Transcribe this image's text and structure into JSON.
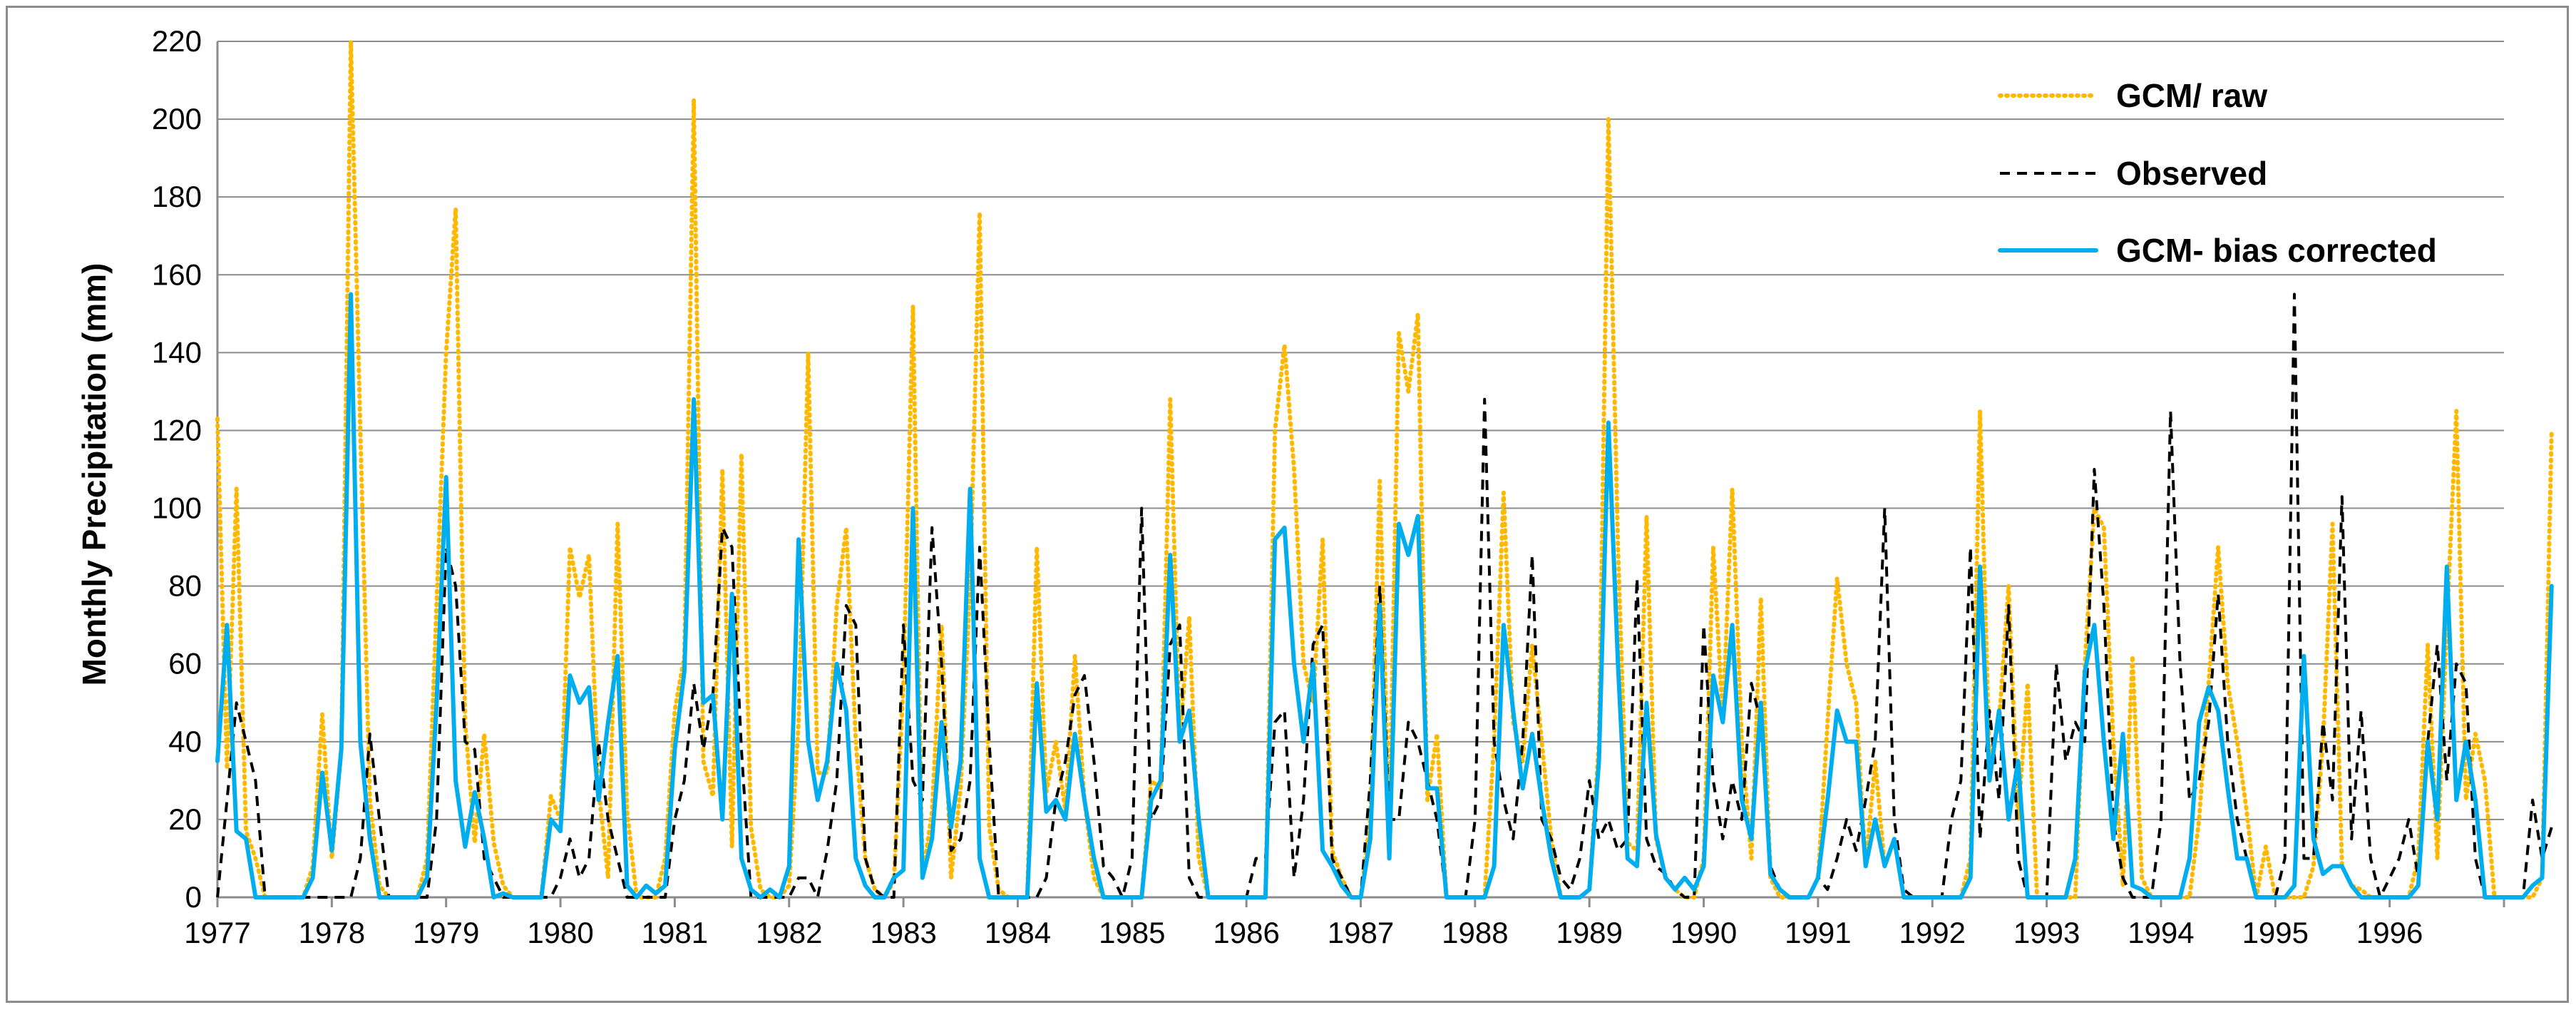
{
  "chart_data": {
    "type": "line",
    "title": "",
    "xlabel": "",
    "ylabel": "Monthly Precipitation (mm)",
    "ylim": [
      0,
      220
    ],
    "yticks": [
      "0",
      "20",
      "40",
      "60",
      "80",
      "100",
      "120",
      "140",
      "160",
      "180",
      "200",
      "220"
    ],
    "xticks": [
      "1977",
      "1978",
      "1979",
      "1980",
      "1981",
      "1982",
      "1983",
      "1984",
      "1985",
      "1986",
      "1987",
      "1988",
      "1989",
      "1990",
      "1991",
      "1992",
      "1993",
      "1994",
      "1995",
      "1996"
    ],
    "x_start": "1977-01",
    "x_frequency": "monthly",
    "grid": "horizontal",
    "legend_position": "top-right",
    "series": [
      {
        "name": "GCM/ raw",
        "color": "#FFB800",
        "style": "dotted",
        "values": [
          123,
          33,
          105,
          17,
          10,
          0,
          0,
          0,
          0,
          0,
          8,
          47,
          10,
          38,
          220,
          120,
          25,
          3,
          0,
          0,
          0,
          0,
          10,
          75,
          140,
          177,
          45,
          14,
          42,
          14,
          3,
          0,
          0,
          0,
          0,
          26,
          20,
          90,
          77,
          88,
          28,
          5,
          96,
          22,
          0,
          0,
          0,
          10,
          48,
          62,
          205,
          35,
          26,
          110,
          13,
          114,
          18,
          2,
          0,
          0,
          3,
          45,
          140,
          32,
          32,
          75,
          95,
          40,
          10,
          2,
          0,
          4,
          55,
          152,
          5,
          22,
          70,
          5,
          28,
          80,
          176,
          18,
          2,
          0,
          0,
          0,
          90,
          27,
          40,
          22,
          62,
          25,
          5,
          0,
          0,
          0,
          0,
          0,
          30,
          28,
          128,
          40,
          72,
          10,
          0,
          0,
          0,
          0,
          0,
          0,
          0,
          120,
          142,
          110,
          60,
          50,
          92,
          12,
          5,
          0,
          0,
          20,
          107,
          18,
          145,
          130,
          150,
          25,
          42,
          0,
          0,
          0,
          0,
          0,
          40,
          104,
          45,
          35,
          65,
          40,
          15,
          0,
          0,
          0,
          2,
          40,
          200,
          90,
          14,
          12,
          98,
          15,
          5,
          2,
          0,
          0,
          10,
          90,
          46,
          105,
          40,
          10,
          77,
          5,
          0,
          0,
          0,
          0,
          5,
          45,
          82,
          60,
          50,
          8,
          35,
          8,
          15,
          0,
          0,
          0,
          0,
          0,
          0,
          0,
          10,
          125,
          35,
          45,
          80,
          20,
          55,
          0,
          0,
          0,
          0,
          0,
          60,
          100,
          95,
          40,
          3,
          62,
          5,
          0,
          0,
          0,
          0,
          0,
          20,
          55,
          90,
          55,
          40,
          22,
          0,
          13,
          0,
          0,
          0,
          0,
          8,
          40,
          96,
          8,
          3,
          2,
          0,
          0,
          0,
          0,
          0,
          10,
          65,
          10,
          70,
          125,
          25,
          42,
          30,
          0,
          0,
          0,
          0,
          0,
          5,
          120
        ]
      },
      {
        "name": "Observed",
        "color": "#000000",
        "style": "dashed",
        "values": [
          0,
          25,
          50,
          40,
          30,
          0,
          0,
          0,
          0,
          0,
          0,
          0,
          0,
          0,
          0,
          10,
          42,
          20,
          0,
          0,
          0,
          0,
          0,
          20,
          90,
          80,
          40,
          38,
          10,
          5,
          0,
          0,
          0,
          0,
          0,
          0,
          5,
          15,
          5,
          10,
          40,
          20,
          10,
          0,
          0,
          0,
          0,
          0,
          20,
          30,
          55,
          38,
          52,
          95,
          90,
          38,
          0,
          0,
          0,
          0,
          0,
          5,
          5,
          0,
          12,
          30,
          75,
          70,
          10,
          2,
          0,
          0,
          70,
          30,
          25,
          95,
          60,
          12,
          15,
          30,
          90,
          40,
          0,
          0,
          0,
          0,
          0,
          5,
          25,
          35,
          52,
          57,
          35,
          8,
          5,
          0,
          10,
          100,
          20,
          25,
          65,
          70,
          5,
          0,
          0,
          0,
          0,
          0,
          0,
          10,
          10,
          45,
          48,
          5,
          25,
          65,
          70,
          10,
          5,
          0,
          0,
          30,
          80,
          20,
          20,
          45,
          40,
          30,
          20,
          0,
          0,
          0,
          20,
          128,
          40,
          25,
          15,
          40,
          88,
          20,
          15,
          5,
          2,
          10,
          30,
          15,
          20,
          12,
          15,
          82,
          15,
          8,
          6,
          2,
          0,
          0,
          70,
          30,
          15,
          30,
          20,
          55,
          45,
          8,
          2,
          0,
          0,
          0,
          5,
          2,
          10,
          20,
          12,
          25,
          40,
          100,
          20,
          2,
          0,
          0,
          0,
          0,
          20,
          30,
          90,
          15,
          48,
          25,
          75,
          10,
          0,
          0,
          0,
          60,
          35,
          45,
          40,
          110,
          75,
          20,
          5,
          0,
          0,
          0,
          20,
          125,
          60,
          25,
          30,
          45,
          78,
          40,
          20,
          10,
          0,
          0,
          0,
          10,
          155,
          10,
          10,
          45,
          25,
          103,
          15,
          48,
          10,
          0,
          5,
          10,
          20,
          5,
          40,
          65,
          30,
          60,
          55,
          10,
          0,
          0,
          0,
          0,
          0,
          25,
          10,
          18
        ]
      },
      {
        "name": "GCM- bias corrected",
        "color": "#00AEEF",
        "style": "solid",
        "values": [
          35,
          70,
          17,
          15,
          0,
          0,
          0,
          0,
          0,
          0,
          5,
          32,
          12,
          38,
          155,
          40,
          15,
          0,
          0,
          0,
          0,
          0,
          5,
          50,
          108,
          30,
          13,
          27,
          15,
          0,
          1,
          0,
          0,
          0,
          0,
          20,
          17,
          57,
          50,
          54,
          25,
          45,
          62,
          3,
          0,
          3,
          1,
          3,
          38,
          58,
          128,
          50,
          52,
          20,
          78,
          10,
          2,
          0,
          2,
          0,
          8,
          92,
          40,
          25,
          35,
          60,
          48,
          10,
          3,
          0,
          0,
          5,
          7,
          100,
          5,
          15,
          45,
          18,
          35,
          105,
          10,
          0,
          0,
          0,
          0,
          0,
          55,
          22,
          25,
          20,
          42,
          25,
          10,
          0,
          0,
          0,
          0,
          0,
          25,
          30,
          88,
          40,
          48,
          20,
          0,
          0,
          0,
          0,
          0,
          0,
          0,
          92,
          95,
          60,
          40,
          60,
          12,
          8,
          3,
          0,
          0,
          15,
          75,
          10,
          96,
          88,
          98,
          28,
          28,
          0,
          0,
          0,
          0,
          0,
          8,
          70,
          48,
          28,
          42,
          25,
          10,
          0,
          0,
          0,
          2,
          35,
          122,
          60,
          10,
          8,
          50,
          16,
          5,
          2,
          5,
          2,
          8,
          57,
          45,
          70,
          25,
          15,
          50,
          6,
          2,
          0,
          0,
          0,
          5,
          25,
          48,
          40,
          40,
          8,
          20,
          8,
          15,
          0,
          0,
          0,
          0,
          0,
          0,
          0,
          5,
          85,
          30,
          48,
          20,
          35,
          0,
          0,
          0,
          0,
          0,
          10,
          58,
          70,
          40,
          15,
          42,
          3,
          2,
          0,
          0,
          0,
          0,
          10,
          45,
          54,
          48,
          28,
          10,
          10,
          0,
          0,
          0,
          0,
          3,
          62,
          15,
          6,
          8,
          8,
          3,
          0,
          0,
          0,
          0,
          0,
          0,
          3,
          40,
          20,
          85,
          25,
          40,
          25,
          0,
          0,
          0,
          0,
          0,
          3,
          5,
          80
        ]
      }
    ]
  }
}
